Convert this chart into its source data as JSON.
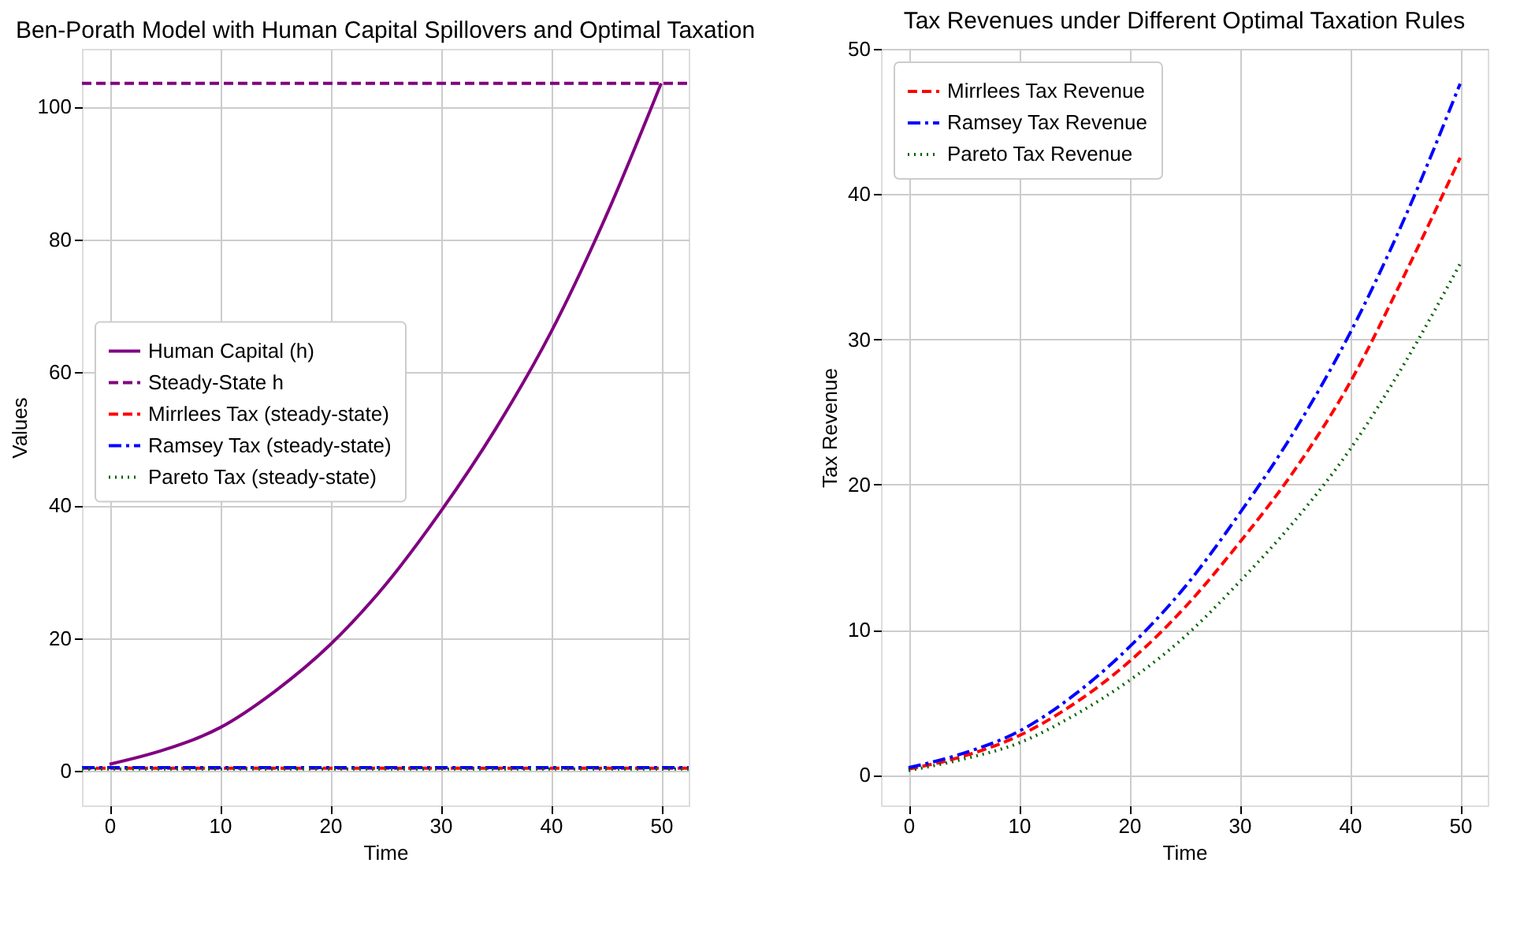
{
  "chart_data": [
    {
      "type": "line",
      "title": "Ben-Porath Model with Human Capital Spillovers and Optimal Taxation",
      "xlabel": "Time",
      "ylabel": "Values",
      "xlim": [
        -2.5,
        52.5
      ],
      "ylim": [
        -5.2,
        108.7
      ],
      "xticks": [
        0,
        10,
        20,
        30,
        40,
        50
      ],
      "yticks": [
        0,
        20,
        40,
        60,
        80,
        100
      ],
      "grid": true,
      "legend": "center left",
      "x": [
        0,
        5,
        10,
        15,
        20,
        25,
        30,
        35,
        40,
        45,
        50
      ],
      "series": [
        {
          "name": "Human Capital (h)",
          "color": "#800080",
          "line_style": "solid",
          "values": [
            1.0,
            3.2,
            6.5,
            12,
            19,
            28,
            39,
            51.5,
            66,
            83.5,
            103.5
          ]
        }
      ],
      "ref_lines": [
        {
          "axis": "y",
          "value": 103.5,
          "label": "Steady-State h",
          "color": "#800080",
          "line_style": "dashed"
        },
        {
          "axis": "y",
          "value": 0.4,
          "label": "Mirrlees Tax (steady-state)",
          "color": "#ff0000",
          "line_style": "dashed"
        },
        {
          "axis": "y",
          "value": 0.5,
          "label": "Ramsey Tax (steady-state)",
          "color": "#0000ff",
          "line_style": "dashdot"
        },
        {
          "axis": "y",
          "value": 0.3,
          "label": "Pareto Tax (steady-state)",
          "color": "#006400",
          "line_style": "dotted"
        }
      ]
    },
    {
      "type": "line",
      "title": "Tax Revenues under Different Optimal Taxation Rules",
      "xlabel": "Time",
      "ylabel": "Tax Revenue",
      "xlim": [
        -2.5,
        52.5
      ],
      "ylim": [
        -2.1,
        50
      ],
      "xticks": [
        0,
        10,
        20,
        30,
        40,
        50
      ],
      "yticks": [
        0,
        10,
        20,
        30,
        40,
        50
      ],
      "grid": true,
      "legend": "top left",
      "x": [
        0,
        5,
        10,
        15,
        20,
        25,
        30,
        35,
        40,
        45,
        50
      ],
      "series": [
        {
          "name": "Mirrlees Tax Revenue",
          "color": "#ff0000",
          "line_style": "dashed",
          "values": [
            0.4,
            1.3,
            2.7,
            4.9,
            7.8,
            11.5,
            16,
            21,
            27,
            34.5,
            42.5
          ]
        },
        {
          "name": "Ramsey Tax Revenue",
          "color": "#0000ff",
          "line_style": "dashdot",
          "values": [
            0.5,
            1.5,
            3.0,
            5.5,
            8.8,
            12.9,
            18,
            23.7,
            30.4,
            38.4,
            47.6
          ]
        },
        {
          "name": "Pareto Tax Revenue",
          "color": "#006400",
          "line_style": "dotted",
          "values": [
            0.3,
            1.1,
            2.2,
            4.1,
            6.5,
            9.5,
            13.3,
            17.5,
            22.4,
            28.4,
            35.2
          ]
        }
      ]
    }
  ]
}
